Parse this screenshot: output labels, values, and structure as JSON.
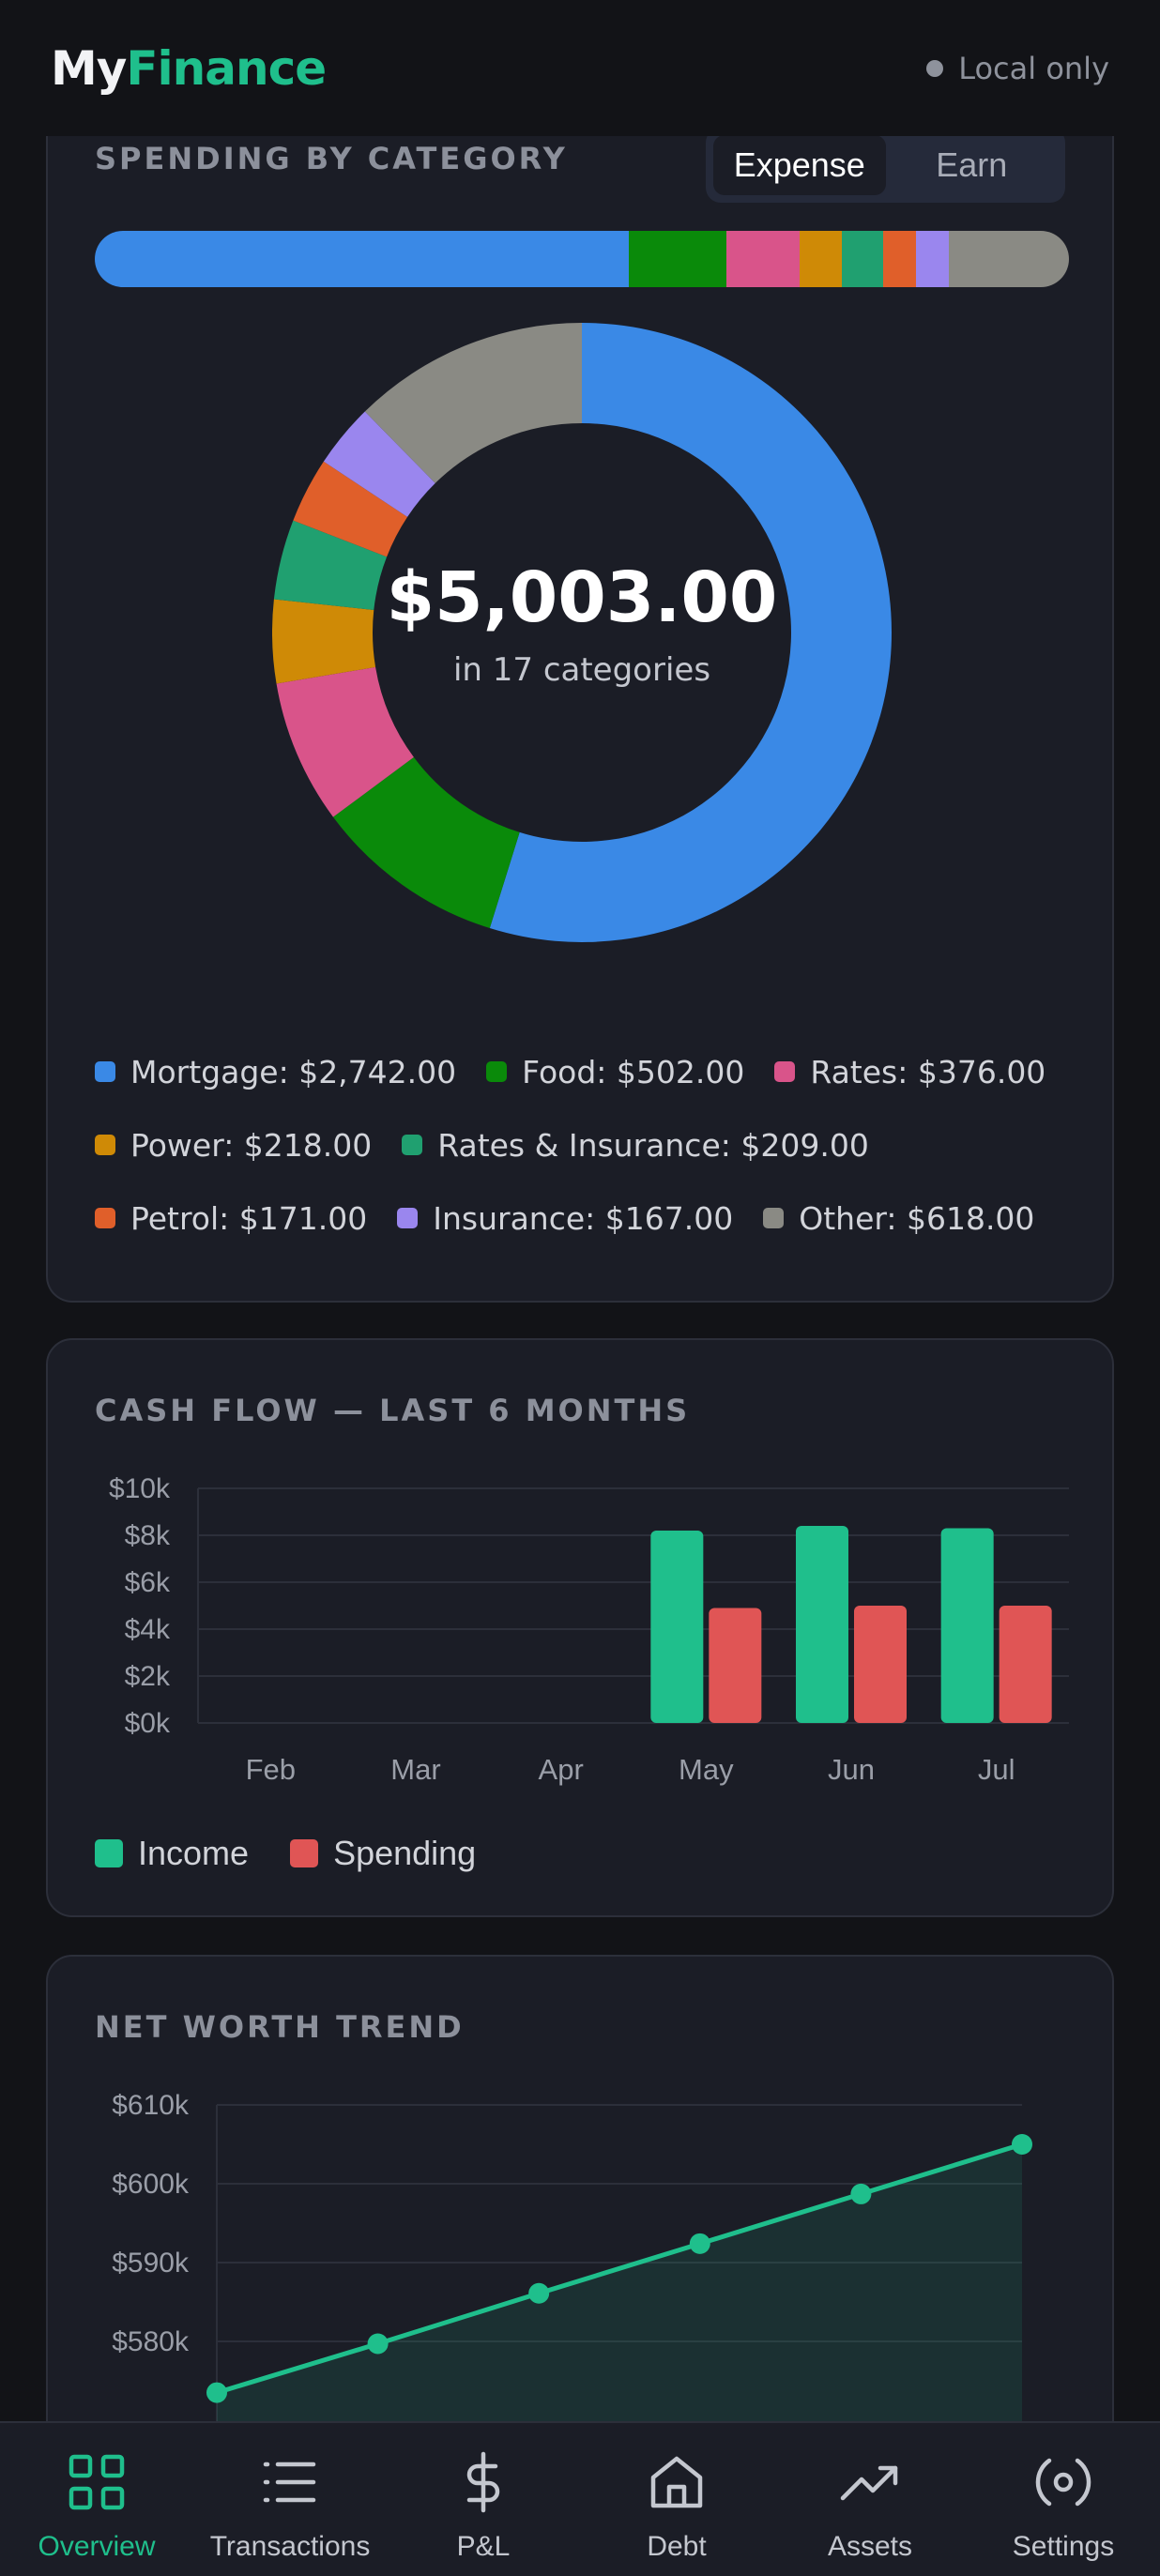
{
  "header": {
    "logo_my": "My",
    "logo_finance": "Finance",
    "status": "Local only"
  },
  "category_card": {
    "title": "SPENDING BY CATEGORY",
    "toggle": [
      "Expense",
      "Earn"
    ],
    "toggle_active": "Expense",
    "total": "$5,003.00",
    "subtitle": "in 17 categories",
    "legend": [
      {
        "label": "Mortgage: $2,742.00",
        "color": "#3a89e6"
      },
      {
        "label": "Food: $502.00",
        "color": "#0a8a0a"
      },
      {
        "label": "Rates: $376.00",
        "color": "#d9548a"
      },
      {
        "label": "Power: $218.00",
        "color": "#cf8a06"
      },
      {
        "label": "Rates & Insurance: $209.00",
        "color": "#20a070"
      },
      {
        "label": "Petrol: $171.00",
        "color": "#e05f2a"
      },
      {
        "label": "Insurance: $167.00",
        "color": "#9a86ee"
      },
      {
        "label": "Other: $618.00",
        "color": "#8a8a84"
      }
    ]
  },
  "chart_data": [
    {
      "type": "pie",
      "categories": [
        "Mortgage",
        "Food",
        "Rates",
        "Power",
        "Rates & Insurance",
        "Petrol",
        "Insurance",
        "Other"
      ],
      "values": [
        2742,
        502,
        376,
        218,
        209,
        171,
        167,
        618
      ],
      "colors": [
        "#3a89e6",
        "#0a8a0a",
        "#d9548a",
        "#cf8a06",
        "#20a070",
        "#e05f2a",
        "#9a86ee",
        "#8a8a84"
      ]
    },
    {
      "type": "bar",
      "title": "CASH FLOW — LAST 6 MONTHS",
      "categories": [
        "Feb",
        "Mar",
        "Apr",
        "May",
        "Jun",
        "Jul"
      ],
      "series": [
        {
          "name": "Income",
          "color": "#1fbf8c",
          "values": [
            0,
            0,
            0,
            8200,
            8400,
            8300
          ]
        },
        {
          "name": "Spending",
          "color": "#e05555",
          "values": [
            0,
            0,
            0,
            4900,
            5000,
            5000
          ]
        }
      ],
      "ylim": [
        0,
        10000
      ],
      "yticks": [
        "$0k",
        "$2k",
        "$4k",
        "$6k",
        "$8k",
        "$10k"
      ],
      "ytick_values": [
        0,
        2000,
        4000,
        6000,
        8000,
        10000
      ]
    },
    {
      "type": "line",
      "title": "NET WORTH TREND",
      "series": [
        {
          "color": "#1fbf8c",
          "values": [
            573500,
            579700,
            586100,
            592400,
            598700,
            605000
          ]
        }
      ],
      "yticks": [
        "$580k",
        "$590k",
        "$600k",
        "$610k"
      ],
      "ytick_values": [
        580000,
        590000,
        600000,
        610000
      ],
      "ylim": [
        573000,
        610000
      ]
    }
  ],
  "nav": [
    {
      "label": "Overview",
      "icon": "grid-icon",
      "active": true
    },
    {
      "label": "Transactions",
      "icon": "list-icon",
      "active": false
    },
    {
      "label": "P&L",
      "icon": "dollar-icon",
      "active": false
    },
    {
      "label": "Debt",
      "icon": "home-icon",
      "active": false
    },
    {
      "label": "Assets",
      "icon": "trending-up-icon",
      "active": false
    },
    {
      "label": "Settings",
      "icon": "settings-icon",
      "active": false
    }
  ]
}
